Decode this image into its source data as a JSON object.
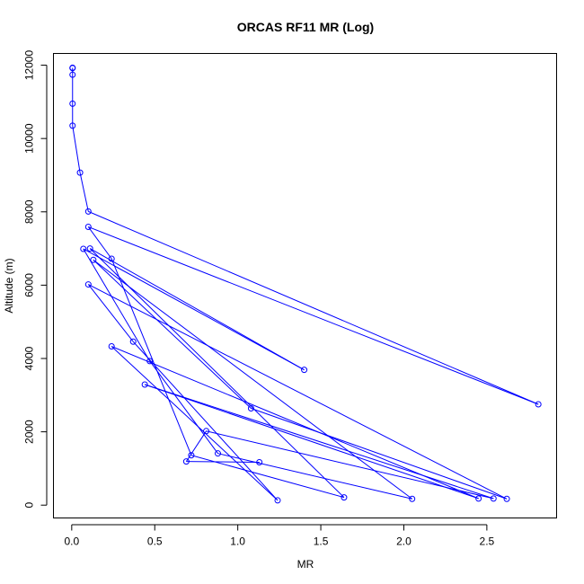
{
  "chart_data": {
    "type": "line",
    "title": "ORCAS RF11 MR (Log)",
    "xlabel": "MR",
    "ylabel": "Altitude (m)",
    "xlim": [
      -0.11,
      2.92
    ],
    "ylim": [
      -350,
      12320
    ],
    "x_ticks": [
      0.0,
      0.5,
      1.0,
      1.5,
      2.0,
      2.5
    ],
    "x_tick_labels": [
      "0.0",
      "0.5",
      "1.0",
      "1.5",
      "2.0",
      "2.5"
    ],
    "y_ticks": [
      0,
      2000,
      4000,
      6000,
      8000,
      10000,
      12000
    ],
    "y_tick_labels": [
      "0",
      "2000",
      "4000",
      "6000",
      "8000",
      "10000",
      "12000"
    ],
    "grid": false,
    "series": [
      {
        "color": "#0000ff",
        "marker": "open-circle",
        "points": [
          {
            "x": 0.005,
            "y": 11930
          },
          {
            "x": 0.005,
            "y": 11920
          },
          {
            "x": 0.005,
            "y": 11740
          },
          {
            "x": 0.005,
            "y": 10950
          },
          {
            "x": 0.005,
            "y": 10350
          },
          {
            "x": 0.05,
            "y": 9070
          },
          {
            "x": 0.1,
            "y": 8010
          },
          {
            "x": 2.81,
            "y": 2750
          },
          {
            "x": 0.1,
            "y": 7590
          },
          {
            "x": 0.24,
            "y": 6720
          },
          {
            "x": 0.72,
            "y": 1360
          },
          {
            "x": 1.64,
            "y": 210
          },
          {
            "x": 0.11,
            "y": 7000
          },
          {
            "x": 1.4,
            "y": 3690
          },
          {
            "x": 0.07,
            "y": 6990
          },
          {
            "x": 0.47,
            "y": 3930
          },
          {
            "x": 0.88,
            "y": 1410
          },
          {
            "x": 2.05,
            "y": 170
          },
          {
            "x": 0.13,
            "y": 6690
          },
          {
            "x": 1.08,
            "y": 2640
          },
          {
            "x": 2.62,
            "y": 170
          },
          {
            "x": 0.1,
            "y": 6020
          },
          {
            "x": 0.37,
            "y": 4460
          },
          {
            "x": 1.24,
            "y": 130
          },
          {
            "x": 0.24,
            "y": 4330
          },
          {
            "x": 2.45,
            "y": 180
          },
          {
            "x": 0.44,
            "y": 3290
          },
          {
            "x": 2.54,
            "y": 180
          },
          {
            "x": 0.81,
            "y": 2020
          },
          {
            "x": 0.69,
            "y": 1190
          },
          {
            "x": 1.13,
            "y": 1170
          }
        ]
      }
    ]
  }
}
